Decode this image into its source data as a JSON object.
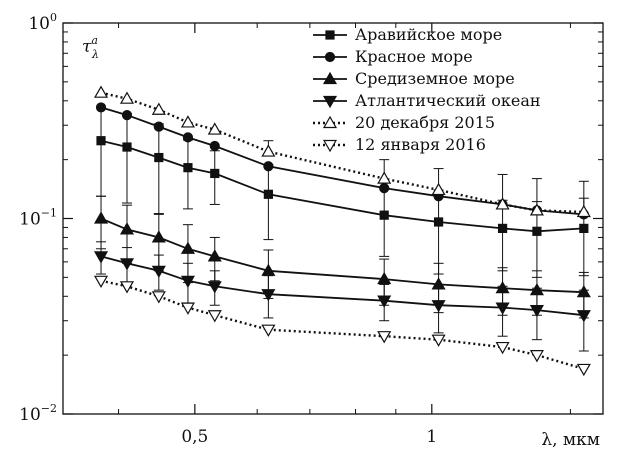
{
  "chart_data": {
    "type": "line",
    "xscale": "log",
    "yscale": "log",
    "xlim": [
      0.34,
      1.65
    ],
    "ylim": [
      0.01,
      1
    ],
    "xlabel": "λ, мкм",
    "ylabel": {
      "base": "τ",
      "sub": "λ",
      "sup": "a"
    },
    "x_ticks": [
      {
        "value": 0.5,
        "label": "0,5"
      },
      {
        "value": 1,
        "label": "1"
      }
    ],
    "y_ticks": [
      {
        "value": 1,
        "base": "10",
        "exp": "0"
      },
      {
        "value": 0.1,
        "base": "10",
        "exp": "−1"
      },
      {
        "value": 0.01,
        "base": "10",
        "exp": "−2"
      }
    ],
    "grid": false,
    "legend_position": "top-right",
    "series": [
      {
        "name": "Аравийское море",
        "marker": "square",
        "filled": true,
        "dash": "solid",
        "x": [
          0.38,
          0.41,
          0.45,
          0.49,
          0.53,
          0.62,
          0.87,
          1.02,
          1.23,
          1.36,
          1.56
        ],
        "y": [
          0.25,
          0.232,
          0.205,
          0.182,
          0.17,
          0.133,
          0.104,
          0.096,
          0.089,
          0.086,
          0.089
        ],
        "err": [
          0.12,
          0.112,
          0.1,
          0.07,
          0.052,
          0.055,
          0.04,
          0.044,
          0.035,
          0.036,
          0.038
        ]
      },
      {
        "name": "Красное море",
        "marker": "circle",
        "filled": true,
        "dash": "solid",
        "x": [
          0.38,
          0.41,
          0.45,
          0.49,
          0.53,
          0.62,
          0.87,
          1.02,
          1.23,
          1.36,
          1.56
        ],
        "y": [
          0.37,
          0.338,
          0.295,
          0.26,
          0.235,
          0.185,
          0.143,
          0.13,
          0.118,
          0.11,
          0.105
        ],
        "err": [],
        "err_note": "none"
      },
      {
        "name": "Средиземное море",
        "marker": "triangle-up",
        "filled": true,
        "dash": "solid",
        "x": [
          0.38,
          0.41,
          0.45,
          0.49,
          0.53,
          0.62,
          0.87,
          1.02,
          1.23,
          1.36,
          1.56
        ],
        "y": [
          0.1,
          0.088,
          0.08,
          0.07,
          0.064,
          0.054,
          0.049,
          0.046,
          0.044,
          0.043,
          0.042
        ],
        "err": [
          0.03,
          0.029,
          0.026,
          0.023,
          0.016,
          0.015,
          0.013,
          0.013,
          0.012,
          0.011,
          0.011
        ]
      },
      {
        "name": "Атлантический океан",
        "marker": "triangle-down",
        "filled": true,
        "dash": "solid",
        "x": [
          0.38,
          0.41,
          0.45,
          0.49,
          0.53,
          0.62,
          0.87,
          1.02,
          1.23,
          1.36,
          1.56
        ],
        "y": [
          0.064,
          0.059,
          0.054,
          0.048,
          0.045,
          0.041,
          0.038,
          0.036,
          0.035,
          0.034,
          0.032
        ],
        "err": [
          0.012,
          0.012,
          0.011,
          0.011,
          0.009,
          0.01,
          0.008,
          0.01,
          0.01,
          0.01,
          0.011
        ]
      },
      {
        "name": "20 декабря 2015",
        "marker": "triangle-up",
        "filled": false,
        "dash": "dotted",
        "x": [
          0.38,
          0.41,
          0.45,
          0.49,
          0.53,
          0.62,
          0.87,
          1.02,
          1.23,
          1.36,
          1.56
        ],
        "y": [
          0.44,
          0.41,
          0.36,
          0.31,
          0.285,
          0.22,
          0.16,
          0.14,
          0.118,
          0.11,
          0.108
        ],
        "err": [
          0,
          0,
          0,
          0,
          0,
          0.03,
          0.04,
          0.04,
          0.05,
          0.05,
          0.047
        ],
        "err_side": "up"
      },
      {
        "name": "12 января 2016",
        "marker": "triangle-down",
        "filled": false,
        "dash": "dotted",
        "x": [
          0.38,
          0.41,
          0.45,
          0.49,
          0.53,
          0.62,
          0.87,
          1.02,
          1.23,
          1.36,
          1.56
        ],
        "y": [
          0.048,
          0.045,
          0.04,
          0.035,
          0.032,
          0.027,
          0.025,
          0.024,
          0.022,
          0.02,
          0.017
        ],
        "err": [],
        "err_note": "none"
      }
    ]
  }
}
